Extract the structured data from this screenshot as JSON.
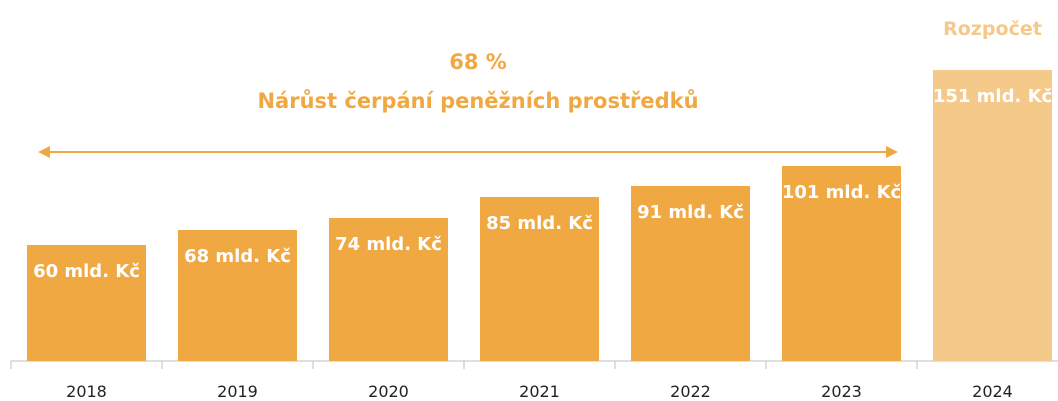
{
  "chart_data": {
    "type": "bar",
    "title": "68 %",
    "subtitle": "Nárůst čerpání peněžních prostředků",
    "annotation": "Rozpočet",
    "categories": [
      "2018",
      "2019",
      "2020",
      "2021",
      "2022",
      "2023",
      "2024"
    ],
    "values": [
      60,
      68,
      74,
      85,
      91,
      101,
      151
    ],
    "value_labels": [
      "60 mld. Kč",
      "68 mld. Kč",
      "74 mld. Kč",
      "85 mld. Kč",
      "91 mld. Kč",
      "101 mld. Kč",
      "151 mld. Kč"
    ],
    "colors": [
      "#f0a843",
      "#f0a843",
      "#f0a843",
      "#f0a843",
      "#f0a843",
      "#f0a843",
      "#f5c98a"
    ]
  }
}
